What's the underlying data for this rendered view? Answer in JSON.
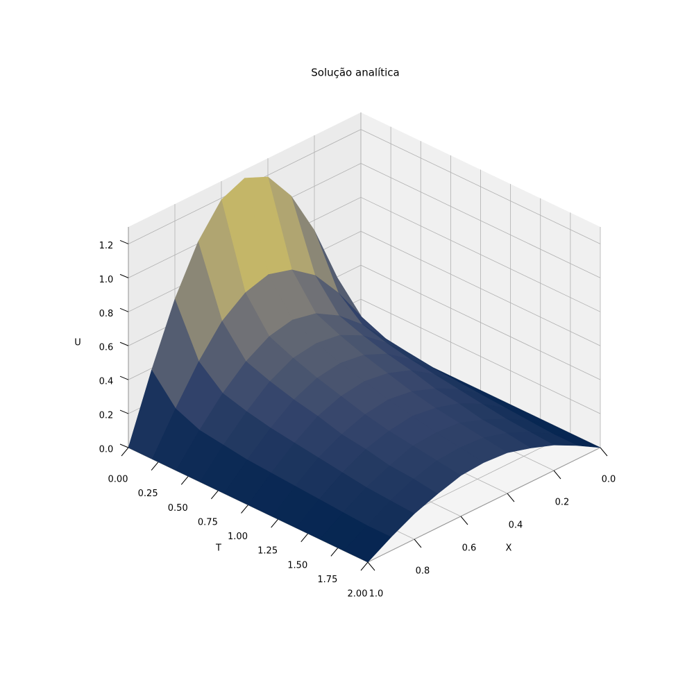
{
  "chart_data": {
    "type": "surface",
    "title": "Solução analítica",
    "x_label": "X",
    "t_label": "T",
    "z_label": "U",
    "colormap": "cividis",
    "grid": true,
    "x": [
      0,
      0.1,
      0.2,
      0.3,
      0.4,
      0.5,
      0.6,
      0.7,
      0.8,
      0.9,
      1
    ],
    "t": [
      0,
      0.2,
      0.4,
      0.6,
      0.8,
      1.0,
      1.2,
      1.4,
      1.6,
      1.8,
      2.0
    ],
    "z": [
      [
        0,
        0.39,
        0.74,
        1.01,
        1.19,
        1.25,
        1.19,
        1.01,
        0.74,
        0.39,
        0
      ],
      [
        0,
        0.23,
        0.44,
        0.61,
        0.71,
        0.75,
        0.71,
        0.61,
        0.44,
        0.23,
        0
      ],
      [
        0,
        0.17,
        0.32,
        0.44,
        0.52,
        0.55,
        0.52,
        0.44,
        0.32,
        0.17,
        0
      ],
      [
        0,
        0.15,
        0.28,
        0.39,
        0.46,
        0.48,
        0.46,
        0.39,
        0.28,
        0.15,
        0
      ],
      [
        0,
        0.13,
        0.25,
        0.35,
        0.41,
        0.43,
        0.41,
        0.35,
        0.25,
        0.13,
        0
      ],
      [
        0,
        0.12,
        0.23,
        0.32,
        0.37,
        0.39,
        0.37,
        0.32,
        0.23,
        0.12,
        0
      ],
      [
        0,
        0.11,
        0.21,
        0.28,
        0.33,
        0.35,
        0.33,
        0.28,
        0.21,
        0.11,
        0
      ],
      [
        0,
        0.1,
        0.19,
        0.26,
        0.3,
        0.32,
        0.3,
        0.26,
        0.19,
        0.1,
        0
      ],
      [
        0,
        0.09,
        0.17,
        0.23,
        0.28,
        0.29,
        0.28,
        0.23,
        0.17,
        0.09,
        0
      ],
      [
        0,
        0.08,
        0.16,
        0.22,
        0.26,
        0.27,
        0.26,
        0.22,
        0.16,
        0.08,
        0
      ],
      [
        0,
        0.08,
        0.15,
        0.2,
        0.24,
        0.25,
        0.24,
        0.2,
        0.15,
        0.08,
        0
      ]
    ],
    "xlim": [
      0,
      1
    ],
    "tlim": [
      0,
      2
    ],
    "zlim": [
      0,
      1.3
    ],
    "xticks": [
      {
        "value": 0,
        "label": "0.0"
      },
      0.2,
      0.4,
      0.6,
      0.8,
      {
        "value": 1,
        "label": "1.0"
      }
    ],
    "tticks": [
      {
        "value": 0,
        "label": "0.00"
      },
      0.25,
      {
        "value": 0.5,
        "label": "0.50"
      },
      0.75,
      {
        "value": 1,
        "label": "1.00"
      },
      1.25,
      {
        "value": 1.5,
        "label": "1.50"
      },
      1.75,
      {
        "value": 2,
        "label": "2.00"
      }
    ],
    "zticks": [
      {
        "value": 0,
        "label": "0.0"
      },
      0.2,
      0.4,
      0.6,
      0.8,
      {
        "value": 1,
        "label": "1.0"
      },
      1.2
    ]
  }
}
